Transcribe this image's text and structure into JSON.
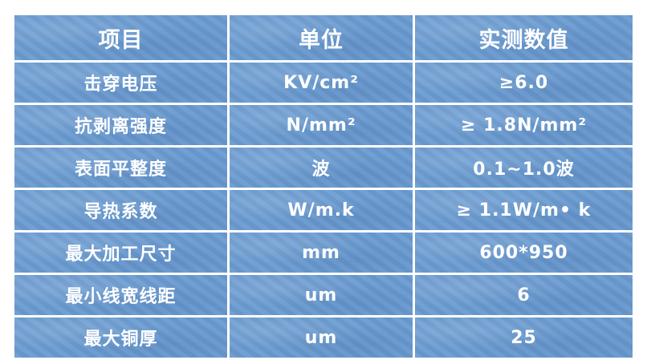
{
  "table": {
    "headers": [
      "项目",
      "单位",
      "实测数值"
    ],
    "rows": [
      [
        "击穿电压",
        "KV/cm²",
        "≥6.0"
      ],
      [
        "抗剥离强度",
        "N/mm²",
        "≥ 1.8N/mm²"
      ],
      [
        "表面平整度",
        "波",
        "0.1~1.0波"
      ],
      [
        "导热系数",
        "W/m.k",
        "≥ 1.1W/m• k"
      ],
      [
        "最大加工尺寸",
        "mm",
        "600*950"
      ],
      [
        "最小线宽线距",
        "um",
        "6"
      ],
      [
        "最大铜厚",
        "um",
        "25"
      ]
    ]
  },
  "colors": {
    "cell_background": "#6a9bd1",
    "text": "#ffffff"
  }
}
